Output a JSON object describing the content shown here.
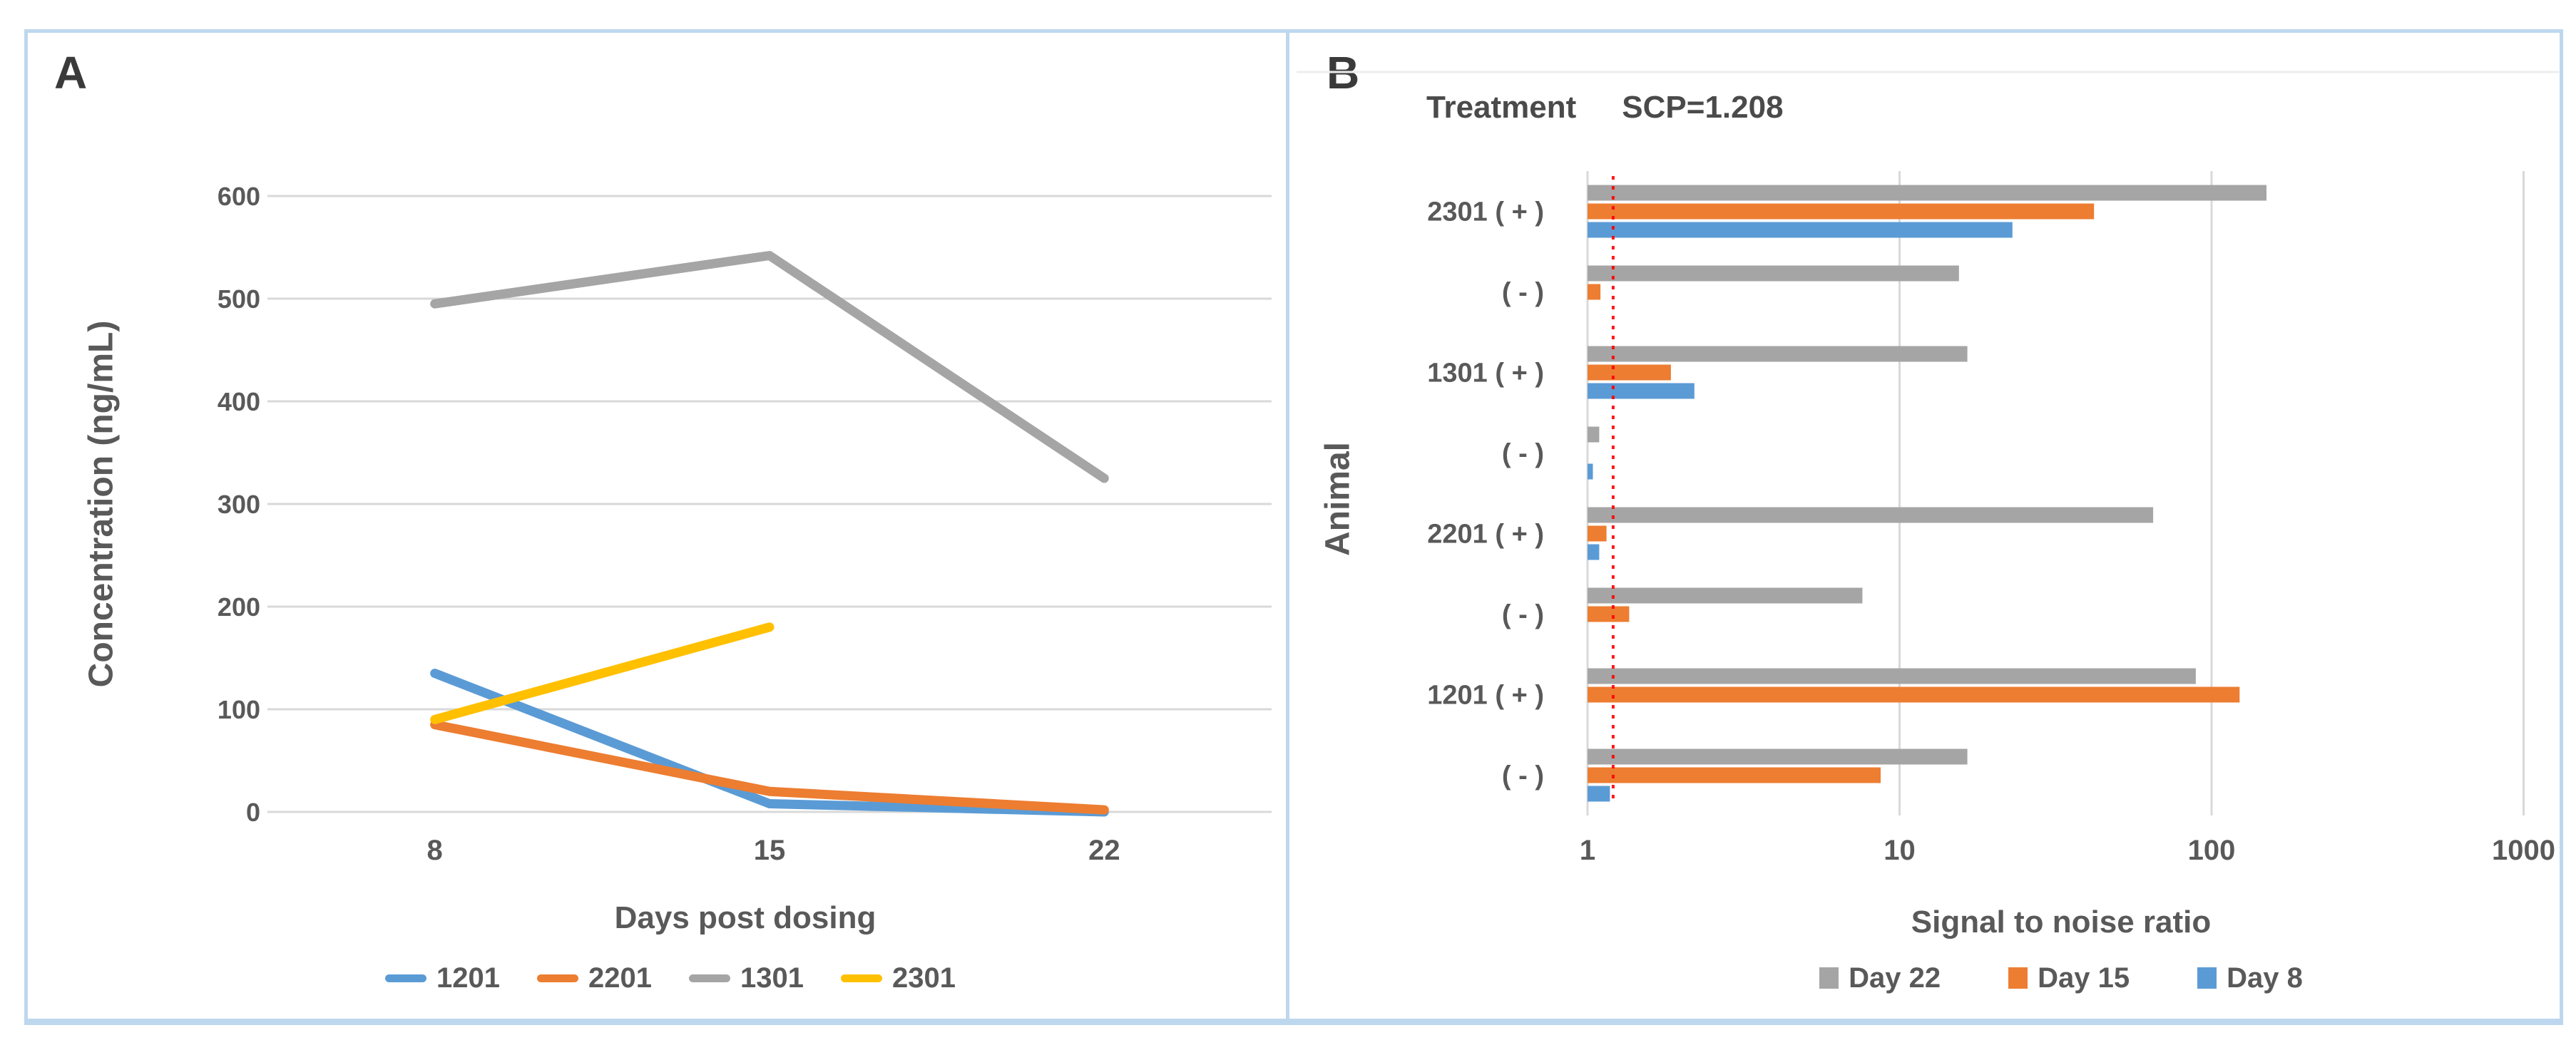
{
  "figure": {
    "panel_a": {
      "label": "A",
      "y_axis_title": "Concentration (ng/mL)",
      "x_axis_title": "Days post dosing"
    },
    "panel_b": {
      "label": "B",
      "title": "Treatment",
      "scp_label": "SCP=1.208",
      "y_axis_title": "Animal",
      "x_axis_title": "Signal to noise ratio"
    }
  },
  "colors": {
    "blue": "#5B9BD5",
    "orange": "#ED7D31",
    "gray": "#A5A5A5",
    "yellow": "#FFC000",
    "red": "#FF0000",
    "border_blue": "#BDD7EE",
    "gridline": "#D9D9D9",
    "text": "#595959"
  },
  "chart_data": [
    {
      "type": "line",
      "panel": "A",
      "title": "",
      "xlabel": "Days post dosing",
      "ylabel": "Concentration (ng/mL)",
      "x": [
        8,
        15,
        22
      ],
      "ylim": [
        0,
        600
      ],
      "yticks": [
        0,
        100,
        200,
        300,
        400,
        500,
        600
      ],
      "grid": "horizontal",
      "legend_position": "bottom",
      "series": [
        {
          "name": "1201",
          "color": "#5B9BD5",
          "values": [
            135,
            8,
            0
          ]
        },
        {
          "name": "2201",
          "color": "#ED7D31",
          "values": [
            85,
            20,
            2
          ]
        },
        {
          "name": "1301",
          "color": "#A5A5A5",
          "values": [
            495,
            542,
            325
          ]
        },
        {
          "name": "2301",
          "color": "#FFC000",
          "values": [
            90,
            180,
            null
          ]
        }
      ]
    },
    {
      "type": "bar",
      "panel": "B",
      "orientation": "horizontal",
      "xscale": "log",
      "xlabel": "Signal to noise ratio",
      "ylabel": "Animal",
      "xlim": [
        1,
        1000
      ],
      "xticks": [
        1,
        10,
        100,
        1000
      ],
      "grid": "vertical",
      "legend_position": "bottom",
      "categories": [
        "2301 ( + )",
        "( - )",
        "1301 ( + )",
        "( - )",
        "2201 ( + )",
        "( - )",
        "1201 ( + )",
        "( - )"
      ],
      "series": [
        {
          "name": "Day 22",
          "color": "#A5A5A5",
          "values": [
            150,
            15.5,
            16.5,
            1.09,
            65,
            7.6,
            89,
            16.5
          ]
        },
        {
          "name": "Day 15",
          "color": "#ED7D31",
          "values": [
            42,
            1.1,
            1.85,
            1.0,
            1.15,
            1.36,
            123,
            8.7
          ]
        },
        {
          "name": "Day 8",
          "color": "#5B9BD5",
          "values": [
            23,
            1.0,
            2.2,
            1.04,
            1.09,
            1.0,
            1.0,
            1.18
          ]
        }
      ],
      "reference_line": {
        "label": "SCP=1.208",
        "value": 1.208,
        "color": "#FF0000",
        "style": "dotted"
      }
    }
  ]
}
